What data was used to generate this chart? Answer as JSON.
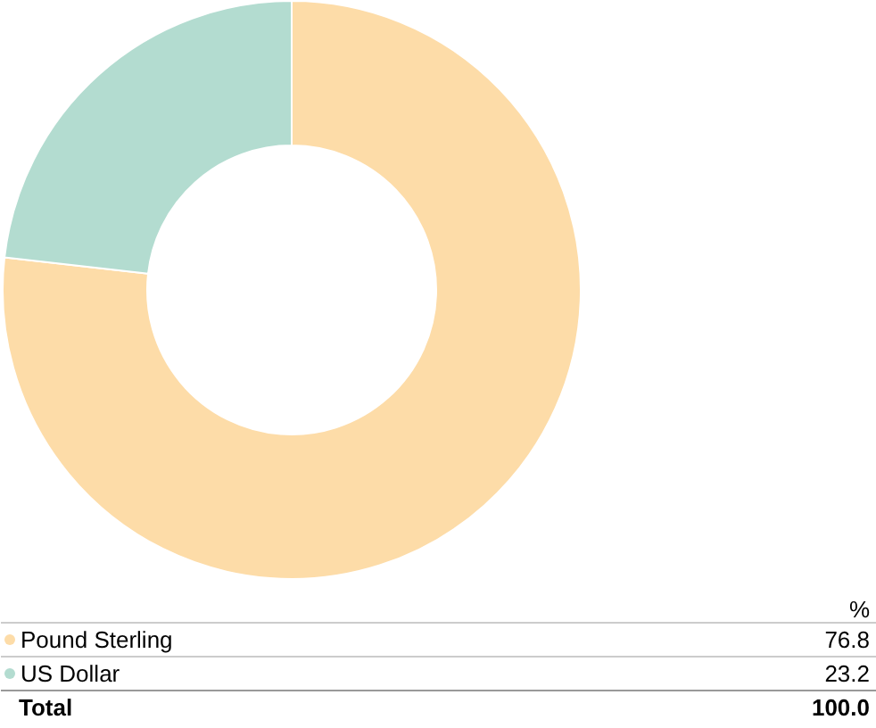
{
  "chart_data": {
    "type": "donut",
    "categories": [
      "Pound Sterling",
      "US Dollar"
    ],
    "values": [
      76.8,
      23.2
    ],
    "colors": [
      "#fddca8",
      "#b3dcd0"
    ],
    "data_labels": true,
    "legend": "bottom",
    "annotations": [
      "%",
      "Total",
      "100.0"
    ]
  }
}
